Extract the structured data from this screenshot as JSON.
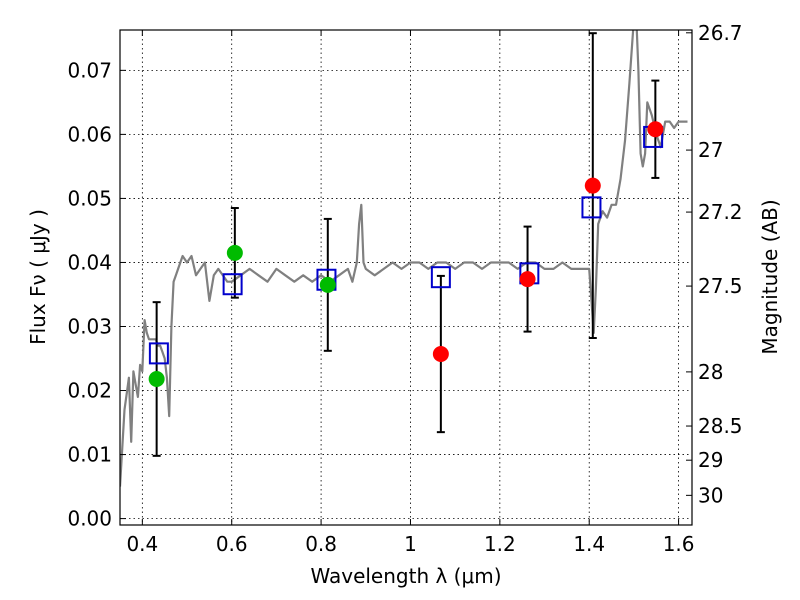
{
  "chart_data": {
    "type": "scatter",
    "xlabel": "Wavelength λ (μm)",
    "ylabel": "Flux Fν ( μJy )",
    "y2label": "Magnitude (AB)",
    "xlim": [
      0.35,
      1.63
    ],
    "ylim": [
      -0.001,
      0.0763
    ],
    "grid": true,
    "colors": {
      "model": "#808080",
      "green_points": "#00bb00",
      "red_points": "#ff0000",
      "model_squares": "#0000cc",
      "error_bars": "#000000"
    },
    "x_ticks": [
      {
        "v": 0.4,
        "label": "0.4"
      },
      {
        "v": 0.6,
        "label": "0.6"
      },
      {
        "v": 0.8,
        "label": "0.8"
      },
      {
        "v": 1.0,
        "label": "1"
      },
      {
        "v": 1.2,
        "label": "1.2"
      },
      {
        "v": 1.4,
        "label": "1.4"
      },
      {
        "v": 1.6,
        "label": "1.6"
      }
    ],
    "y_ticks": [
      {
        "v": 0.0,
        "label": "0.00"
      },
      {
        "v": 0.01,
        "label": "0.01"
      },
      {
        "v": 0.02,
        "label": "0.02"
      },
      {
        "v": 0.03,
        "label": "0.03"
      },
      {
        "v": 0.04,
        "label": "0.04"
      },
      {
        "v": 0.05,
        "label": "0.05"
      },
      {
        "v": 0.06,
        "label": "0.06"
      },
      {
        "v": 0.07,
        "label": "0.07"
      }
    ],
    "mag_ticks": [
      {
        "v": 26.7,
        "label": "26.7"
      },
      {
        "v": 27.0,
        "label": "27"
      },
      {
        "v": 27.2,
        "label": "27.2"
      },
      {
        "v": 27.5,
        "label": "27.5"
      },
      {
        "v": 28.0,
        "label": "28"
      },
      {
        "v": 28.5,
        "label": "28.5"
      },
      {
        "v": 29.0,
        "label": "29"
      },
      {
        "v": 30.0,
        "label": "30"
      }
    ],
    "series": [
      {
        "kind": "line",
        "x": [
          0.35,
          0.36,
          0.37,
          0.375,
          0.38,
          0.385,
          0.39,
          0.395,
          0.4,
          0.405,
          0.41,
          0.415,
          0.42,
          0.425,
          0.43,
          0.435,
          0.44,
          0.445,
          0.45,
          0.455,
          0.46,
          0.465,
          0.47,
          0.475,
          0.48,
          0.49,
          0.5,
          0.51,
          0.52,
          0.53,
          0.54,
          0.55,
          0.56,
          0.57,
          0.58,
          0.59,
          0.6,
          0.62,
          0.64,
          0.66,
          0.68,
          0.7,
          0.72,
          0.74,
          0.76,
          0.78,
          0.8,
          0.82,
          0.84,
          0.86,
          0.87,
          0.88,
          0.885,
          0.89,
          0.895,
          0.9,
          0.92,
          0.94,
          0.96,
          0.98,
          1.0,
          1.02,
          1.04,
          1.06,
          1.08,
          1.1,
          1.12,
          1.14,
          1.16,
          1.18,
          1.2,
          1.22,
          1.24,
          1.26,
          1.28,
          1.3,
          1.32,
          1.34,
          1.36,
          1.38,
          1.4,
          1.405,
          1.41,
          1.415,
          1.42,
          1.43,
          1.44,
          1.45,
          1.46,
          1.47,
          1.48,
          1.49,
          1.5,
          1.505,
          1.51,
          1.515,
          1.52,
          1.525,
          1.53,
          1.54,
          1.55,
          1.56,
          1.57,
          1.58,
          1.59,
          1.6,
          1.62
        ],
        "y": [
          0.005,
          0.017,
          0.022,
          0.012,
          0.023,
          0.021,
          0.019,
          0.024,
          0.023,
          0.031,
          0.029,
          0.028,
          0.028,
          0.028,
          0.028,
          0.027,
          0.027,
          0.026,
          0.025,
          0.022,
          0.016,
          0.03,
          0.037,
          0.038,
          0.039,
          0.041,
          0.04,
          0.041,
          0.038,
          0.039,
          0.04,
          0.034,
          0.038,
          0.039,
          0.038,
          0.037,
          0.037,
          0.038,
          0.039,
          0.038,
          0.037,
          0.039,
          0.038,
          0.037,
          0.038,
          0.037,
          0.038,
          0.037,
          0.038,
          0.039,
          0.037,
          0.04,
          0.046,
          0.049,
          0.04,
          0.039,
          0.038,
          0.039,
          0.04,
          0.039,
          0.04,
          0.04,
          0.039,
          0.04,
          0.04,
          0.039,
          0.04,
          0.04,
          0.039,
          0.04,
          0.04,
          0.04,
          0.039,
          0.04,
          0.04,
          0.039,
          0.039,
          0.04,
          0.039,
          0.039,
          0.039,
          0.034,
          0.029,
          0.036,
          0.046,
          0.048,
          0.047,
          0.049,
          0.049,
          0.053,
          0.059,
          0.068,
          0.078,
          0.079,
          0.07,
          0.057,
          0.055,
          0.057,
          0.065,
          0.063,
          0.06,
          0.058,
          0.062,
          0.062,
          0.061,
          0.062,
          0.062
        ]
      },
      {
        "kind": "points",
        "marker": "circle",
        "color_key": "green_points",
        "x": [
          0.432,
          0.607,
          0.815
        ],
        "y": [
          0.0218,
          0.0415,
          0.0365
        ],
        "yerr": [
          0.012,
          0.007,
          0.0103
        ]
      },
      {
        "kind": "points",
        "marker": "circle",
        "color_key": "red_points",
        "x": [
          1.068,
          1.262,
          1.408,
          1.548
        ],
        "y": [
          0.0257,
          0.0374,
          0.052,
          0.0608
        ],
        "yerr": [
          0.0122,
          0.0082,
          0.0238,
          0.0076
        ]
      },
      {
        "kind": "points",
        "marker": "square",
        "color_key": "model_squares",
        "x": [
          0.437,
          0.602,
          0.812,
          1.068,
          1.266,
          1.405,
          1.543
        ],
        "y": [
          0.0258,
          0.0366,
          0.0373,
          0.0377,
          0.0383,
          0.0486,
          0.0596
        ]
      }
    ]
  }
}
